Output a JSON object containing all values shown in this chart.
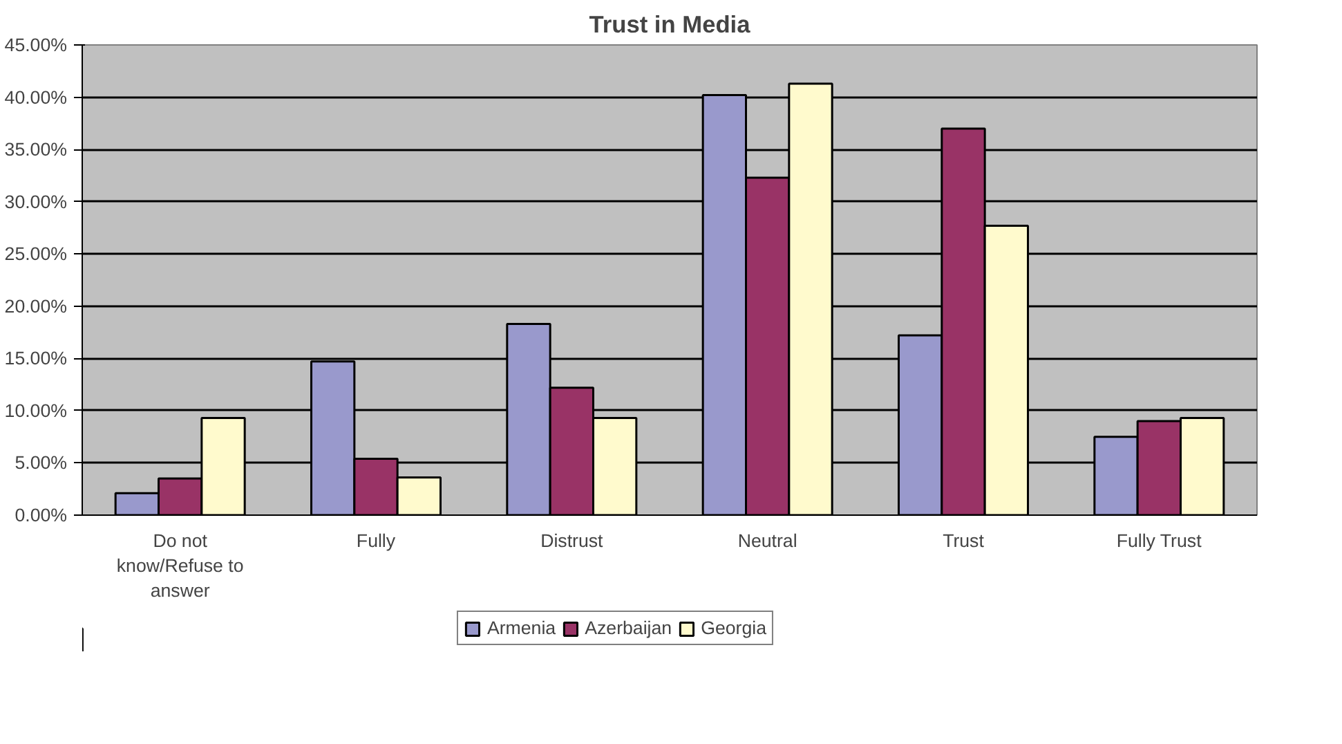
{
  "chart_data": {
    "type": "bar",
    "title": "Trust in Media",
    "categories": [
      "Do not know/Refuse to answer",
      "Fully",
      "Distrust",
      "Neutral",
      "Trust",
      "Fully Trust"
    ],
    "series": [
      {
        "name": "Armenia",
        "color": "#9999cc",
        "values": [
          2.1,
          14.7,
          18.3,
          40.2,
          17.2,
          7.5
        ]
      },
      {
        "name": "Azerbaijan",
        "color": "#993366",
        "values": [
          3.5,
          5.4,
          12.2,
          32.3,
          37.0,
          9.0
        ]
      },
      {
        "name": "Georgia",
        "color": "#fffacd",
        "values": [
          9.3,
          3.6,
          9.3,
          41.3,
          27.7,
          9.3
        ]
      }
    ],
    "ylim": [
      0,
      45
    ],
    "yticks": [
      {
        "value": 0,
        "label": "0.00%"
      },
      {
        "value": 5,
        "label": "5.00%"
      },
      {
        "value": 10,
        "label": "10.00%"
      },
      {
        "value": 15,
        "label": "15.00%"
      },
      {
        "value": 20,
        "label": "20.00%"
      },
      {
        "value": 25,
        "label": "25.00%"
      },
      {
        "value": 30,
        "label": "30.00%"
      },
      {
        "value": 35,
        "label": "35.00%"
      },
      {
        "value": 40,
        "label": "40.00%"
      },
      {
        "value": 45,
        "label": "45.00%"
      }
    ],
    "grid": "y",
    "legend": "bottom"
  }
}
